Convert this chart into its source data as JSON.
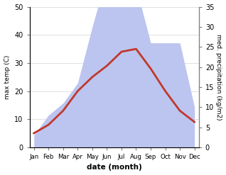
{
  "months": [
    "Jan",
    "Feb",
    "Mar",
    "Apr",
    "May",
    "Jun",
    "Jul",
    "Aug",
    "Sep",
    "Oct",
    "Nov",
    "Dec"
  ],
  "temperature": [
    5,
    8,
    13,
    20,
    25,
    29,
    34,
    35,
    28,
    20,
    13,
    9
  ],
  "precipitation": [
    3,
    8,
    11,
    16,
    30,
    43,
    39,
    40,
    26,
    26,
    26,
    10
  ],
  "temp_ylim": [
    0,
    50
  ],
  "precip_ylim": [
    0,
    35
  ],
  "temp_color": "#c0392b",
  "precip_fill_color": "#bcc5f0",
  "xlabel": "date (month)",
  "ylabel_left": "max temp (C)",
  "ylabel_right": "med. precipitation (kg/m2)",
  "temp_yticks": [
    0,
    10,
    20,
    30,
    40,
    50
  ],
  "precip_yticks": [
    0,
    5,
    10,
    15,
    20,
    25,
    30,
    35
  ],
  "line_width": 2.0,
  "scale_factor": 1.4286
}
